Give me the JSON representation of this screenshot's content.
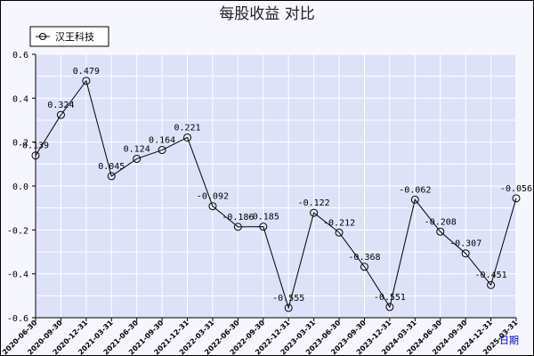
{
  "chart_data": {
    "type": "line",
    "title": "每股收益  对比",
    "xlabel": "日期",
    "ylabel": "",
    "ylim": [
      -0.6,
      0.6
    ],
    "yticks": [
      "0.6",
      "0.4",
      "0.2",
      "0.0",
      "-0.2",
      "-0.4",
      "-0.6"
    ],
    "grid": true,
    "legend_position": "top-left",
    "categories": [
      "2020-06-30",
      "2020-09-30",
      "2020-12-31",
      "2021-03-31",
      "2021-06-30",
      "2021-09-30",
      "2021-12-31",
      "2022-03-31",
      "2022-06-30",
      "2022-09-30",
      "2022-12-31",
      "2023-03-31",
      "2023-06-30",
      "2023-09-30",
      "2023-12-31",
      "2024-03-31",
      "2024-06-30",
      "2024-09-30",
      "2024-12-31",
      "2025-03-31"
    ],
    "series": [
      {
        "name": "汉王科技",
        "values": [
          0.139,
          0.324,
          0.479,
          0.045,
          0.124,
          0.164,
          0.221,
          -0.092,
          -0.186,
          -0.185,
          -0.555,
          -0.122,
          -0.212,
          -0.368,
          -0.551,
          -0.062,
          -0.208,
          -0.307,
          -0.451,
          -0.056
        ],
        "labels": [
          "0.139",
          "0.324",
          "0.479",
          "0.045",
          "0.124",
          "0.164",
          "0.221",
          "-0.092",
          "-0.186",
          "-0.185",
          "-0.555",
          "-0.122",
          "-0.212",
          "-0.368",
          "-0.551",
          "-0.062",
          "-0.208",
          "-0.307",
          "-0.451",
          "-0.056"
        ]
      }
    ],
    "colors": {
      "plot_bg": "#dde2f9",
      "grid": "#ffffff",
      "line": "#000000",
      "frame_bg": "#f6f6fe",
      "axis_label": "#0000cc"
    }
  }
}
